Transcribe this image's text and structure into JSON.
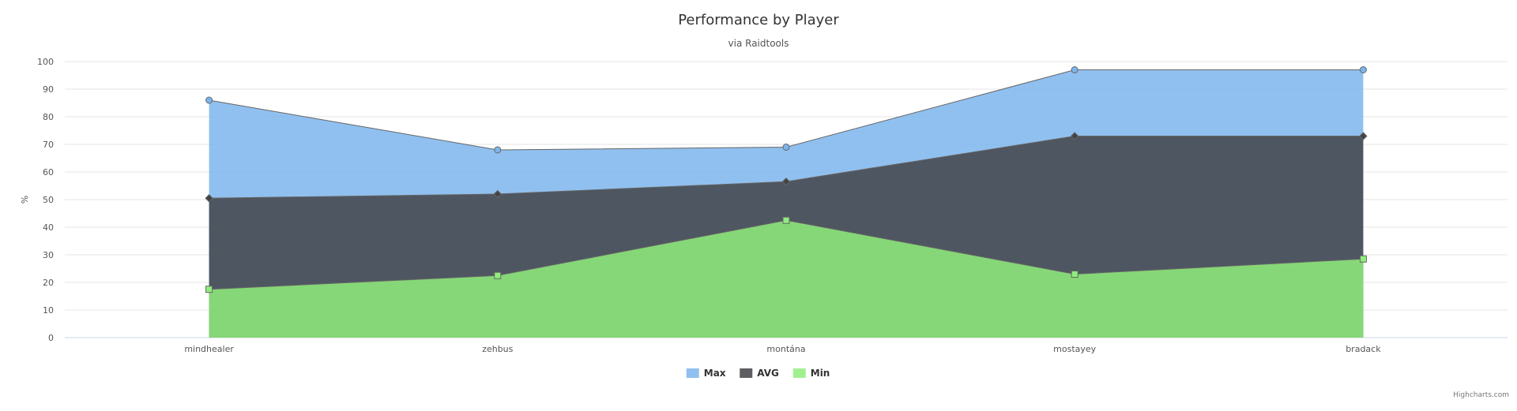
{
  "chart_data": {
    "type": "area",
    "title": "Performance by Player",
    "subtitle": "via Raidtools",
    "ylabel": "%",
    "ylim": [
      0,
      100
    ],
    "yticks": [
      0,
      10,
      20,
      30,
      40,
      50,
      60,
      70,
      80,
      90,
      100
    ],
    "grid": true,
    "legend_position": "bottom-center",
    "categories": [
      "mindhealer",
      "zehbus",
      "montána",
      "mostayey",
      "bradack"
    ],
    "series": [
      {
        "name": "Max",
        "color": "#7cb5ec",
        "marker": "circle",
        "values": [
          86,
          68,
          69,
          97,
          97
        ]
      },
      {
        "name": "AVG",
        "color": "#434348",
        "marker": "diamond",
        "values": [
          50.5,
          52,
          56.5,
          73,
          73
        ]
      },
      {
        "name": "Min",
        "color": "#90ed7d",
        "marker": "square",
        "values": [
          17.5,
          22.5,
          42.5,
          23,
          28.5
        ]
      }
    ]
  },
  "credits": "Highcharts.com"
}
